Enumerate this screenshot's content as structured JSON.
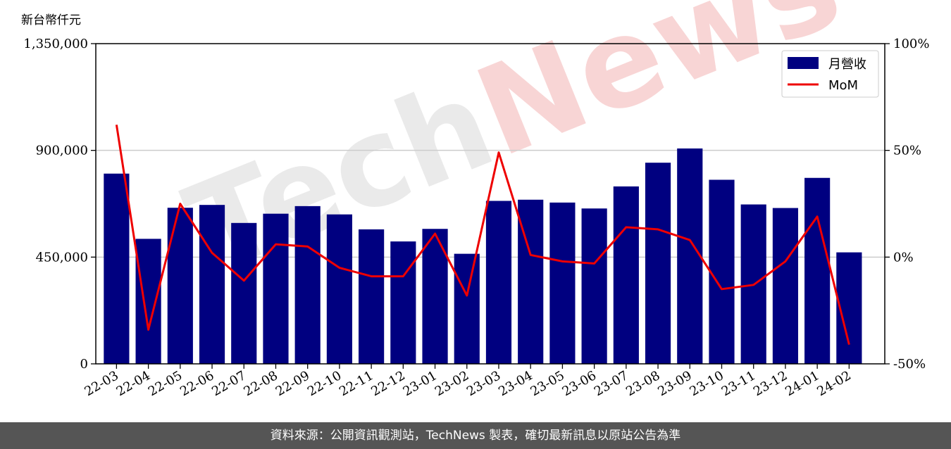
{
  "unit_label": "新台幣仟元",
  "footer_text": "資料來源：公開資訊觀測站，TechNews 製表，確切最新訊息以原站公告為準",
  "watermark": "TechNews",
  "colors": {
    "bar": "#000080",
    "line": "#ee0000",
    "grid": "#cccccc",
    "footer_bg": "#555555"
  },
  "chart_data": {
    "type": "bar+line",
    "categories": [
      "22-03",
      "22-04",
      "22-05",
      "22-06",
      "22-07",
      "22-08",
      "22-09",
      "22-10",
      "22-11",
      "22-12",
      "23-01",
      "23-02",
      "23-03",
      "23-04",
      "23-05",
      "23-06",
      "23-07",
      "23-08",
      "23-09",
      "23-10",
      "23-11",
      "23-12",
      "24-01",
      "24-02"
    ],
    "series": [
      {
        "name": "月營收",
        "type": "bar",
        "axis": "left",
        "values": [
          802000,
          527000,
          658000,
          670000,
          594000,
          633000,
          665000,
          630000,
          567000,
          516000,
          569000,
          464000,
          687000,
          692000,
          680000,
          655000,
          748000,
          848000,
          908000,
          776000,
          672000,
          657000,
          784000,
          470000
        ]
      },
      {
        "name": "MoM",
        "type": "line",
        "axis": "right",
        "values": [
          62,
          -34,
          25,
          2,
          -11,
          6,
          5,
          -5,
          -9,
          -9,
          11,
          -18,
          49,
          1,
          -2,
          -3,
          14,
          13,
          8,
          -15,
          -13,
          -2,
          19,
          -41
        ]
      }
    ],
    "y_left": {
      "min": 0,
      "max": 1350000,
      "ticks": [
        0,
        450000,
        900000,
        1350000
      ],
      "tick_labels": [
        "0",
        "450,000",
        "900,000",
        "1,350,000"
      ]
    },
    "y_right": {
      "min": -50,
      "max": 100,
      "ticks": [
        -50,
        0,
        50,
        100
      ],
      "tick_labels": [
        "-50%",
        "0%",
        "50%",
        "100%"
      ]
    },
    "grid": "horizontal",
    "legend": {
      "position": "top-right",
      "entries": [
        "月營收",
        "MoM"
      ]
    }
  }
}
